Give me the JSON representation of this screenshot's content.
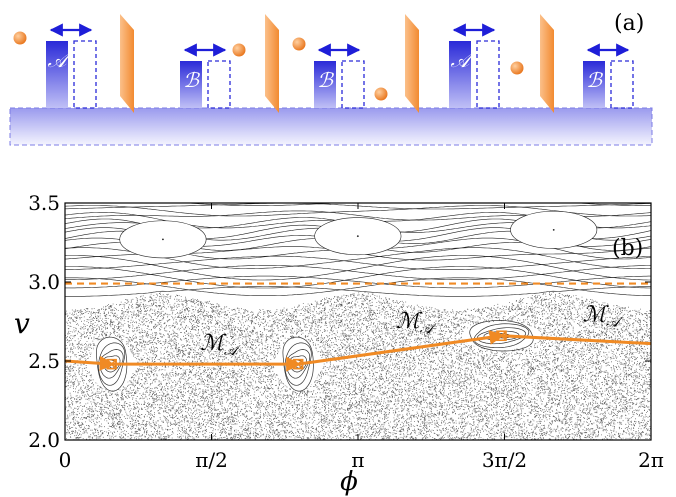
{
  "panel_a": {
    "label": "(a)",
    "bars": [
      {
        "name": "A",
        "label": "𝒜"
      },
      {
        "name": "B",
        "label": "ℬ"
      },
      {
        "name": "B",
        "label": "ℬ"
      },
      {
        "name": "A",
        "label": "𝒜"
      },
      {
        "name": "B",
        "label": "ℬ"
      }
    ],
    "colors": {
      "bar": "#2a2ad8",
      "base": "#b8b8f4",
      "slab": "#f59640",
      "particle": "#f08a24"
    }
  },
  "chart_data": {
    "type": "scatter",
    "panel_label": "(b)",
    "xlabel": "ϕ",
    "ylabel": "v",
    "xlim": [
      0,
      6.2832
    ],
    "ylim": [
      2.0,
      3.5
    ],
    "x_ticks": [
      {
        "value": 0,
        "label": "0"
      },
      {
        "value": 1.5708,
        "label": "π/2"
      },
      {
        "value": 3.1416,
        "label": "π"
      },
      {
        "value": 4.7124,
        "label": "3π/2"
      },
      {
        "value": 6.2832,
        "label": "2π"
      }
    ],
    "y_ticks": [
      {
        "value": 2.0,
        "label": "2.0"
      },
      {
        "value": 2.5,
        "label": "2.5"
      },
      {
        "value": 3.0,
        "label": "3.0"
      },
      {
        "value": 3.5,
        "label": "3.5"
      }
    ],
    "dashed_line": {
      "y": 2.99,
      "color": "#f08a24"
    },
    "trajectory": {
      "color": "#f08a24",
      "points": [
        [
          0,
          2.5
        ],
        [
          0.5,
          2.48
        ],
        [
          2.5,
          2.48
        ],
        [
          4.68,
          2.66
        ],
        [
          6.2832,
          2.61
        ]
      ]
    },
    "fixed_points": [
      [
        0.5,
        2.48
      ],
      [
        2.5,
        2.48
      ],
      [
        4.68,
        2.66
      ]
    ],
    "islands": [
      [
        0.5,
        2.48
      ],
      [
        2.5,
        2.48
      ],
      [
        4.68,
        2.66
      ]
    ],
    "annotations": [
      {
        "text": "ℳ",
        "sub": "𝒜",
        "x": 1.45,
        "y": 2.57
      },
      {
        "text": "ℳ",
        "sub": "𝒜",
        "x": 3.55,
        "y": 2.71
      },
      {
        "text": "ℳ",
        "sub": "𝒜",
        "x": 5.55,
        "y": 2.75
      }
    ]
  }
}
